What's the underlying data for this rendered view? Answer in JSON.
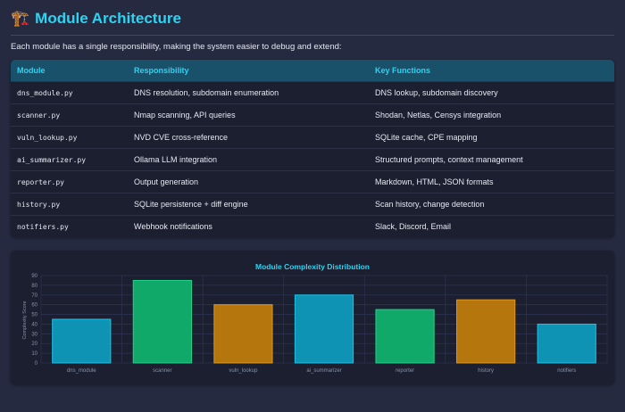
{
  "header": {
    "icon": "construction-crane-icon",
    "emoji": "🏗️",
    "title": "Module Architecture"
  },
  "intro": "Each module has a single responsibility, making the system easier to debug and extend:",
  "table": {
    "columns": [
      "Module",
      "Responsibility",
      "Key Functions"
    ],
    "rows": [
      [
        "dns_module.py",
        "DNS resolution, subdomain enumeration",
        "DNS lookup, subdomain discovery"
      ],
      [
        "scanner.py",
        "Nmap scanning, API queries",
        "Shodan, Netlas, Censys integration"
      ],
      [
        "vuln_lookup.py",
        "NVD CVE cross-reference",
        "SQLite cache, CPE mapping"
      ],
      [
        "ai_summarizer.py",
        "Ollama LLM integration",
        "Structured prompts, context management"
      ],
      [
        "reporter.py",
        "Output generation",
        "Markdown, HTML, JSON formats"
      ],
      [
        "history.py",
        "SQLite persistence + diff engine",
        "Scan history, change detection"
      ],
      [
        "notifiers.py",
        "Webhook notifications",
        "Slack, Discord, Email"
      ]
    ]
  },
  "chart_data": {
    "type": "bar",
    "title": "Module Complexity Distribution",
    "xlabel": "",
    "ylabel": "Complexity Score",
    "categories": [
      "dns_module",
      "scanner",
      "vuln_lookup",
      "ai_summarizer",
      "reporter",
      "history",
      "notifiers"
    ],
    "values": [
      45,
      85,
      60,
      70,
      55,
      65,
      40
    ],
    "ylim": [
      0,
      90
    ],
    "yticks": [
      0,
      10,
      20,
      30,
      40,
      50,
      60,
      70,
      80,
      90
    ],
    "grid": true,
    "colors": [
      "#0e93b5",
      "#10a96a",
      "#b5760e",
      "#0e93b5",
      "#10a96a",
      "#b5760e",
      "#0e93b5"
    ],
    "border_colors": [
      "#1fc1e6",
      "#22d38a",
      "#e0961c",
      "#1fc1e6",
      "#22d38a",
      "#e0961c",
      "#1fc1e6"
    ]
  }
}
